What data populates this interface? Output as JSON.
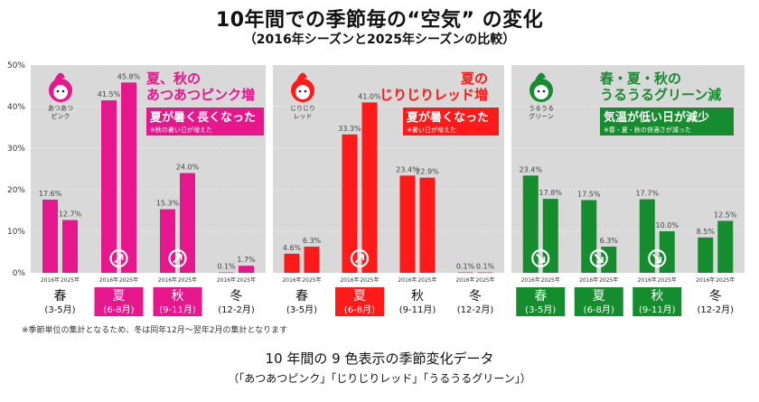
{
  "title": "10年間での季節毎の“空気” の変化",
  "subtitle": "（2016年シーズンと2025年シーズンの比較）",
  "note": "※季節単位の集計となるため、冬は同年12月～翌年2月の集計となります",
  "footer": {
    "line1": "10 年間の 9 色表示の季節変化データ",
    "line2": "（「あつあつピンク」「じりじりレッド」「うるうるグリーン」）"
  },
  "colors": {
    "pink": "#E6168D",
    "red": "#FF1A1A",
    "green": "#158C2E",
    "panel_bg": "#D9D9D9"
  },
  "chart_data": [
    {
      "type": "bar",
      "panel": "pink",
      "color": "#E6168D",
      "icon_caption": [
        "あつあつ",
        "ピンク"
      ],
      "headline": [
        "夏、秋の",
        "あつあつピンク増"
      ],
      "box_title": "夏が暑く長くなった",
      "box_note": "※秋の暑い日が増えた",
      "categories": [
        "春",
        "夏",
        "秋",
        "冬"
      ],
      "category_months": [
        "(3-5月)",
        "(6-8月)",
        "(9-11月)",
        "(12-2月)"
      ],
      "highlighted": [
        false,
        true,
        true,
        false
      ],
      "arrow_up": [
        false,
        true,
        true,
        false
      ],
      "arrow_down": [
        false,
        false,
        false,
        false
      ],
      "series": [
        {
          "name": "2016年",
          "values": [
            17.6,
            41.5,
            15.3,
            0.1
          ]
        },
        {
          "name": "2025年",
          "values": [
            12.7,
            45.8,
            24.0,
            1.7
          ]
        }
      ],
      "ylim": [
        0,
        50
      ],
      "yticks": [
        "0%",
        "10%",
        "20%",
        "30%",
        "40%",
        "50%"
      ]
    },
    {
      "type": "bar",
      "panel": "red",
      "color": "#FF1A1A",
      "icon_caption": [
        "じりじり",
        "レッド"
      ],
      "headline": [
        "夏の",
        "じりじりレッド増"
      ],
      "box_title": "夏が暑くなった",
      "box_note": "※暑い日が増えた",
      "categories": [
        "春",
        "夏",
        "秋",
        "冬"
      ],
      "category_months": [
        "(3-5月)",
        "(6-8月)",
        "(9-11月)",
        "(12-2月)"
      ],
      "highlighted": [
        false,
        true,
        false,
        false
      ],
      "arrow_up": [
        false,
        true,
        false,
        false
      ],
      "arrow_down": [
        false,
        false,
        false,
        false
      ],
      "series": [
        {
          "name": "2016年",
          "values": [
            4.6,
            33.3,
            23.4,
            0.1
          ]
        },
        {
          "name": "2025年",
          "values": [
            6.3,
            41.0,
            22.9,
            0.1
          ]
        }
      ],
      "ylim": [
        0,
        50
      ]
    },
    {
      "type": "bar",
      "panel": "green",
      "color": "#158C2E",
      "icon_caption": [
        "うるうる",
        "グリーン"
      ],
      "headline": [
        "春・夏・秋の",
        "うるうるグリーン減"
      ],
      "box_title": "気温が低い日が減少",
      "box_note": "※春・夏・秋の快適さが減った",
      "categories": [
        "春",
        "夏",
        "秋",
        "冬"
      ],
      "category_months": [
        "(3-5月)",
        "(6-8月)",
        "(9-11月)",
        "(12-2月)"
      ],
      "highlighted": [
        true,
        true,
        true,
        false
      ],
      "arrow_up": [
        false,
        false,
        false,
        false
      ],
      "arrow_down": [
        true,
        true,
        true,
        false
      ],
      "series": [
        {
          "name": "2016年",
          "values": [
            23.4,
            17.5,
            17.7,
            8.5
          ]
        },
        {
          "name": "2025年",
          "values": [
            17.8,
            6.3,
            10.0,
            12.5
          ]
        }
      ],
      "ylim": [
        0,
        50
      ]
    }
  ]
}
